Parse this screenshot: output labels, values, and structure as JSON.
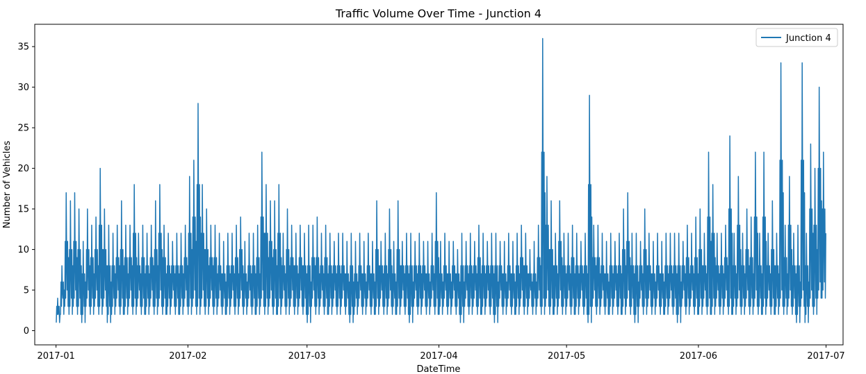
{
  "chart_data": {
    "type": "line",
    "title": "Traffic Volume Over Time - Junction 4",
    "xlabel": "DateTime",
    "ylabel": "Number of Vehicles",
    "xlim": [
      "2016-12-27",
      "2017-07-05"
    ],
    "ylim": [
      -1.75,
      37.75
    ],
    "x_ticks": [
      {
        "date": "2017-01-01",
        "label": "2017-01"
      },
      {
        "date": "2017-02-01",
        "label": "2017-02"
      },
      {
        "date": "2017-03-01",
        "label": "2017-03"
      },
      {
        "date": "2017-04-01",
        "label": "2017-04"
      },
      {
        "date": "2017-05-01",
        "label": "2017-05"
      },
      {
        "date": "2017-06-01",
        "label": "2017-06"
      },
      {
        "date": "2017-07-01",
        "label": "2017-07"
      }
    ],
    "y_ticks": [
      {
        "value": 0,
        "label": "0"
      },
      {
        "value": 5,
        "label": "5"
      },
      {
        "value": 10,
        "label": "10"
      },
      {
        "value": 15,
        "label": "15"
      },
      {
        "value": 20,
        "label": "20"
      },
      {
        "value": 25,
        "label": "25"
      },
      {
        "value": 30,
        "label": "30"
      },
      {
        "value": 35,
        "label": "35"
      }
    ],
    "grid": false,
    "legend": {
      "position": "top-right"
    },
    "series": [
      {
        "name": "Junction 4",
        "color": "#1f77b4",
        "x": [
          "2017-01-01",
          "2017-01-02",
          "2017-01-03",
          "2017-01-04",
          "2017-01-05",
          "2017-01-06",
          "2017-01-07",
          "2017-01-08",
          "2017-01-09",
          "2017-01-10",
          "2017-01-11",
          "2017-01-12",
          "2017-01-13",
          "2017-01-14",
          "2017-01-15",
          "2017-01-16",
          "2017-01-17",
          "2017-01-18",
          "2017-01-19",
          "2017-01-20",
          "2017-01-21",
          "2017-01-22",
          "2017-01-23",
          "2017-01-24",
          "2017-01-25",
          "2017-01-26",
          "2017-01-27",
          "2017-01-28",
          "2017-01-29",
          "2017-01-30",
          "2017-01-31",
          "2017-02-01",
          "2017-02-02",
          "2017-02-03",
          "2017-02-04",
          "2017-02-05",
          "2017-02-06",
          "2017-02-07",
          "2017-02-08",
          "2017-02-09",
          "2017-02-10",
          "2017-02-11",
          "2017-02-12",
          "2017-02-13",
          "2017-02-14",
          "2017-02-15",
          "2017-02-16",
          "2017-02-17",
          "2017-02-18",
          "2017-02-19",
          "2017-02-20",
          "2017-02-21",
          "2017-02-22",
          "2017-02-23",
          "2017-02-24",
          "2017-02-25",
          "2017-02-26",
          "2017-02-27",
          "2017-02-28",
          "2017-03-01",
          "2017-03-02",
          "2017-03-03",
          "2017-03-04",
          "2017-03-05",
          "2017-03-06",
          "2017-03-07",
          "2017-03-08",
          "2017-03-09",
          "2017-03-10",
          "2017-03-11",
          "2017-03-12",
          "2017-03-13",
          "2017-03-14",
          "2017-03-15",
          "2017-03-16",
          "2017-03-17",
          "2017-03-18",
          "2017-03-19",
          "2017-03-20",
          "2017-03-21",
          "2017-03-22",
          "2017-03-23",
          "2017-03-24",
          "2017-03-25",
          "2017-03-26",
          "2017-03-27",
          "2017-03-28",
          "2017-03-29",
          "2017-03-30",
          "2017-03-31",
          "2017-04-01",
          "2017-04-02",
          "2017-04-03",
          "2017-04-04",
          "2017-04-05",
          "2017-04-06",
          "2017-04-07",
          "2017-04-08",
          "2017-04-09",
          "2017-04-10",
          "2017-04-11",
          "2017-04-12",
          "2017-04-13",
          "2017-04-14",
          "2017-04-15",
          "2017-04-16",
          "2017-04-17",
          "2017-04-18",
          "2017-04-19",
          "2017-04-20",
          "2017-04-21",
          "2017-04-22",
          "2017-04-23",
          "2017-04-24",
          "2017-04-25",
          "2017-04-26",
          "2017-04-27",
          "2017-04-28",
          "2017-04-29",
          "2017-04-30",
          "2017-05-01",
          "2017-05-02",
          "2017-05-03",
          "2017-05-04",
          "2017-05-05",
          "2017-05-06",
          "2017-05-07",
          "2017-05-08",
          "2017-05-09",
          "2017-05-10",
          "2017-05-11",
          "2017-05-12",
          "2017-05-13",
          "2017-05-14",
          "2017-05-15",
          "2017-05-16",
          "2017-05-17",
          "2017-05-18",
          "2017-05-19",
          "2017-05-20",
          "2017-05-21",
          "2017-05-22",
          "2017-05-23",
          "2017-05-24",
          "2017-05-25",
          "2017-05-26",
          "2017-05-27",
          "2017-05-28",
          "2017-05-29",
          "2017-05-30",
          "2017-05-31",
          "2017-06-01",
          "2017-06-02",
          "2017-06-03",
          "2017-06-04",
          "2017-06-05",
          "2017-06-06",
          "2017-06-07",
          "2017-06-08",
          "2017-06-09",
          "2017-06-10",
          "2017-06-11",
          "2017-06-12",
          "2017-06-13",
          "2017-06-14",
          "2017-06-15",
          "2017-06-16",
          "2017-06-17",
          "2017-06-18",
          "2017-06-19",
          "2017-06-20",
          "2017-06-21",
          "2017-06-22",
          "2017-06-23",
          "2017-06-24",
          "2017-06-25",
          "2017-06-26",
          "2017-06-27",
          "2017-06-28",
          "2017-06-29",
          "2017-06-30"
        ],
        "daily_min": [
          1,
          2,
          3,
          2,
          3,
          2,
          1,
          3,
          2,
          3,
          2,
          3,
          1,
          2,
          3,
          2,
          2,
          3,
          2,
          3,
          2,
          2,
          3,
          2,
          3,
          2,
          2,
          3,
          2,
          2,
          3,
          2,
          3,
          2,
          3,
          2,
          3,
          2,
          3,
          2,
          2,
          3,
          2,
          3,
          2,
          3,
          2,
          2,
          3,
          2,
          3,
          2,
          2,
          3,
          2,
          3,
          2,
          3,
          2,
          1,
          3,
          2,
          3,
          2,
          2,
          3,
          2,
          3,
          2,
          1,
          2,
          3,
          2,
          3,
          2,
          2,
          3,
          2,
          3,
          2,
          2,
          3,
          2,
          1,
          3,
          2,
          3,
          2,
          3,
          2,
          2,
          3,
          2,
          3,
          2,
          1,
          3,
          2,
          3,
          2,
          2,
          3,
          2,
          1,
          3,
          2,
          3,
          2,
          2,
          3,
          2,
          3,
          2,
          3,
          2,
          3,
          2,
          2,
          3,
          2,
          3,
          2,
          2,
          3,
          2,
          1,
          3,
          2,
          3,
          2,
          2,
          3,
          2,
          2,
          3,
          2,
          1,
          3,
          2,
          3,
          2,
          3,
          2,
          2,
          3,
          2,
          1,
          3,
          2,
          3,
          2,
          2,
          3,
          2,
          2,
          3,
          2,
          3,
          2,
          2,
          3,
          2,
          3,
          2,
          3,
          2,
          2,
          3,
          2,
          2,
          3,
          2,
          3,
          2,
          1,
          3,
          1,
          3,
          2,
          4,
          4
        ],
        "daily_max": [
          4,
          8,
          17,
          16,
          17,
          15,
          11,
          15,
          13,
          14,
          20,
          15,
          13,
          12,
          13,
          16,
          13,
          13,
          18,
          12,
          13,
          12,
          13,
          16,
          18,
          13,
          12,
          11,
          12,
          12,
          13,
          19,
          21,
          28,
          18,
          15,
          13,
          13,
          12,
          11,
          12,
          12,
          13,
          14,
          11,
          12,
          12,
          13,
          22,
          18,
          16,
          16,
          18,
          12,
          15,
          13,
          12,
          13,
          12,
          13,
          13,
          14,
          12,
          13,
          12,
          11,
          12,
          12,
          11,
          12,
          11,
          12,
          11,
          12,
          11,
          16,
          11,
          12,
          15,
          11,
          16,
          11,
          12,
          12,
          11,
          12,
          11,
          11,
          12,
          17,
          11,
          12,
          11,
          11,
          10,
          12,
          11,
          12,
          11,
          13,
          12,
          11,
          12,
          12,
          11,
          11,
          12,
          11,
          12,
          13,
          12,
          10,
          11,
          13,
          36,
          19,
          16,
          12,
          16,
          12,
          12,
          13,
          12,
          11,
          12,
          29,
          13,
          13,
          12,
          11,
          12,
          11,
          12,
          15,
          17,
          12,
          12,
          11,
          15,
          12,
          11,
          12,
          11,
          12,
          12,
          12,
          12,
          11,
          13,
          12,
          14,
          15,
          12,
          22,
          18,
          12,
          12,
          13,
          24,
          12,
          19,
          12,
          15,
          14,
          22,
          12,
          22,
          12,
          16,
          12,
          33,
          13,
          19,
          12,
          13,
          33,
          12,
          23,
          20,
          30,
          22
        ]
      }
    ]
  }
}
